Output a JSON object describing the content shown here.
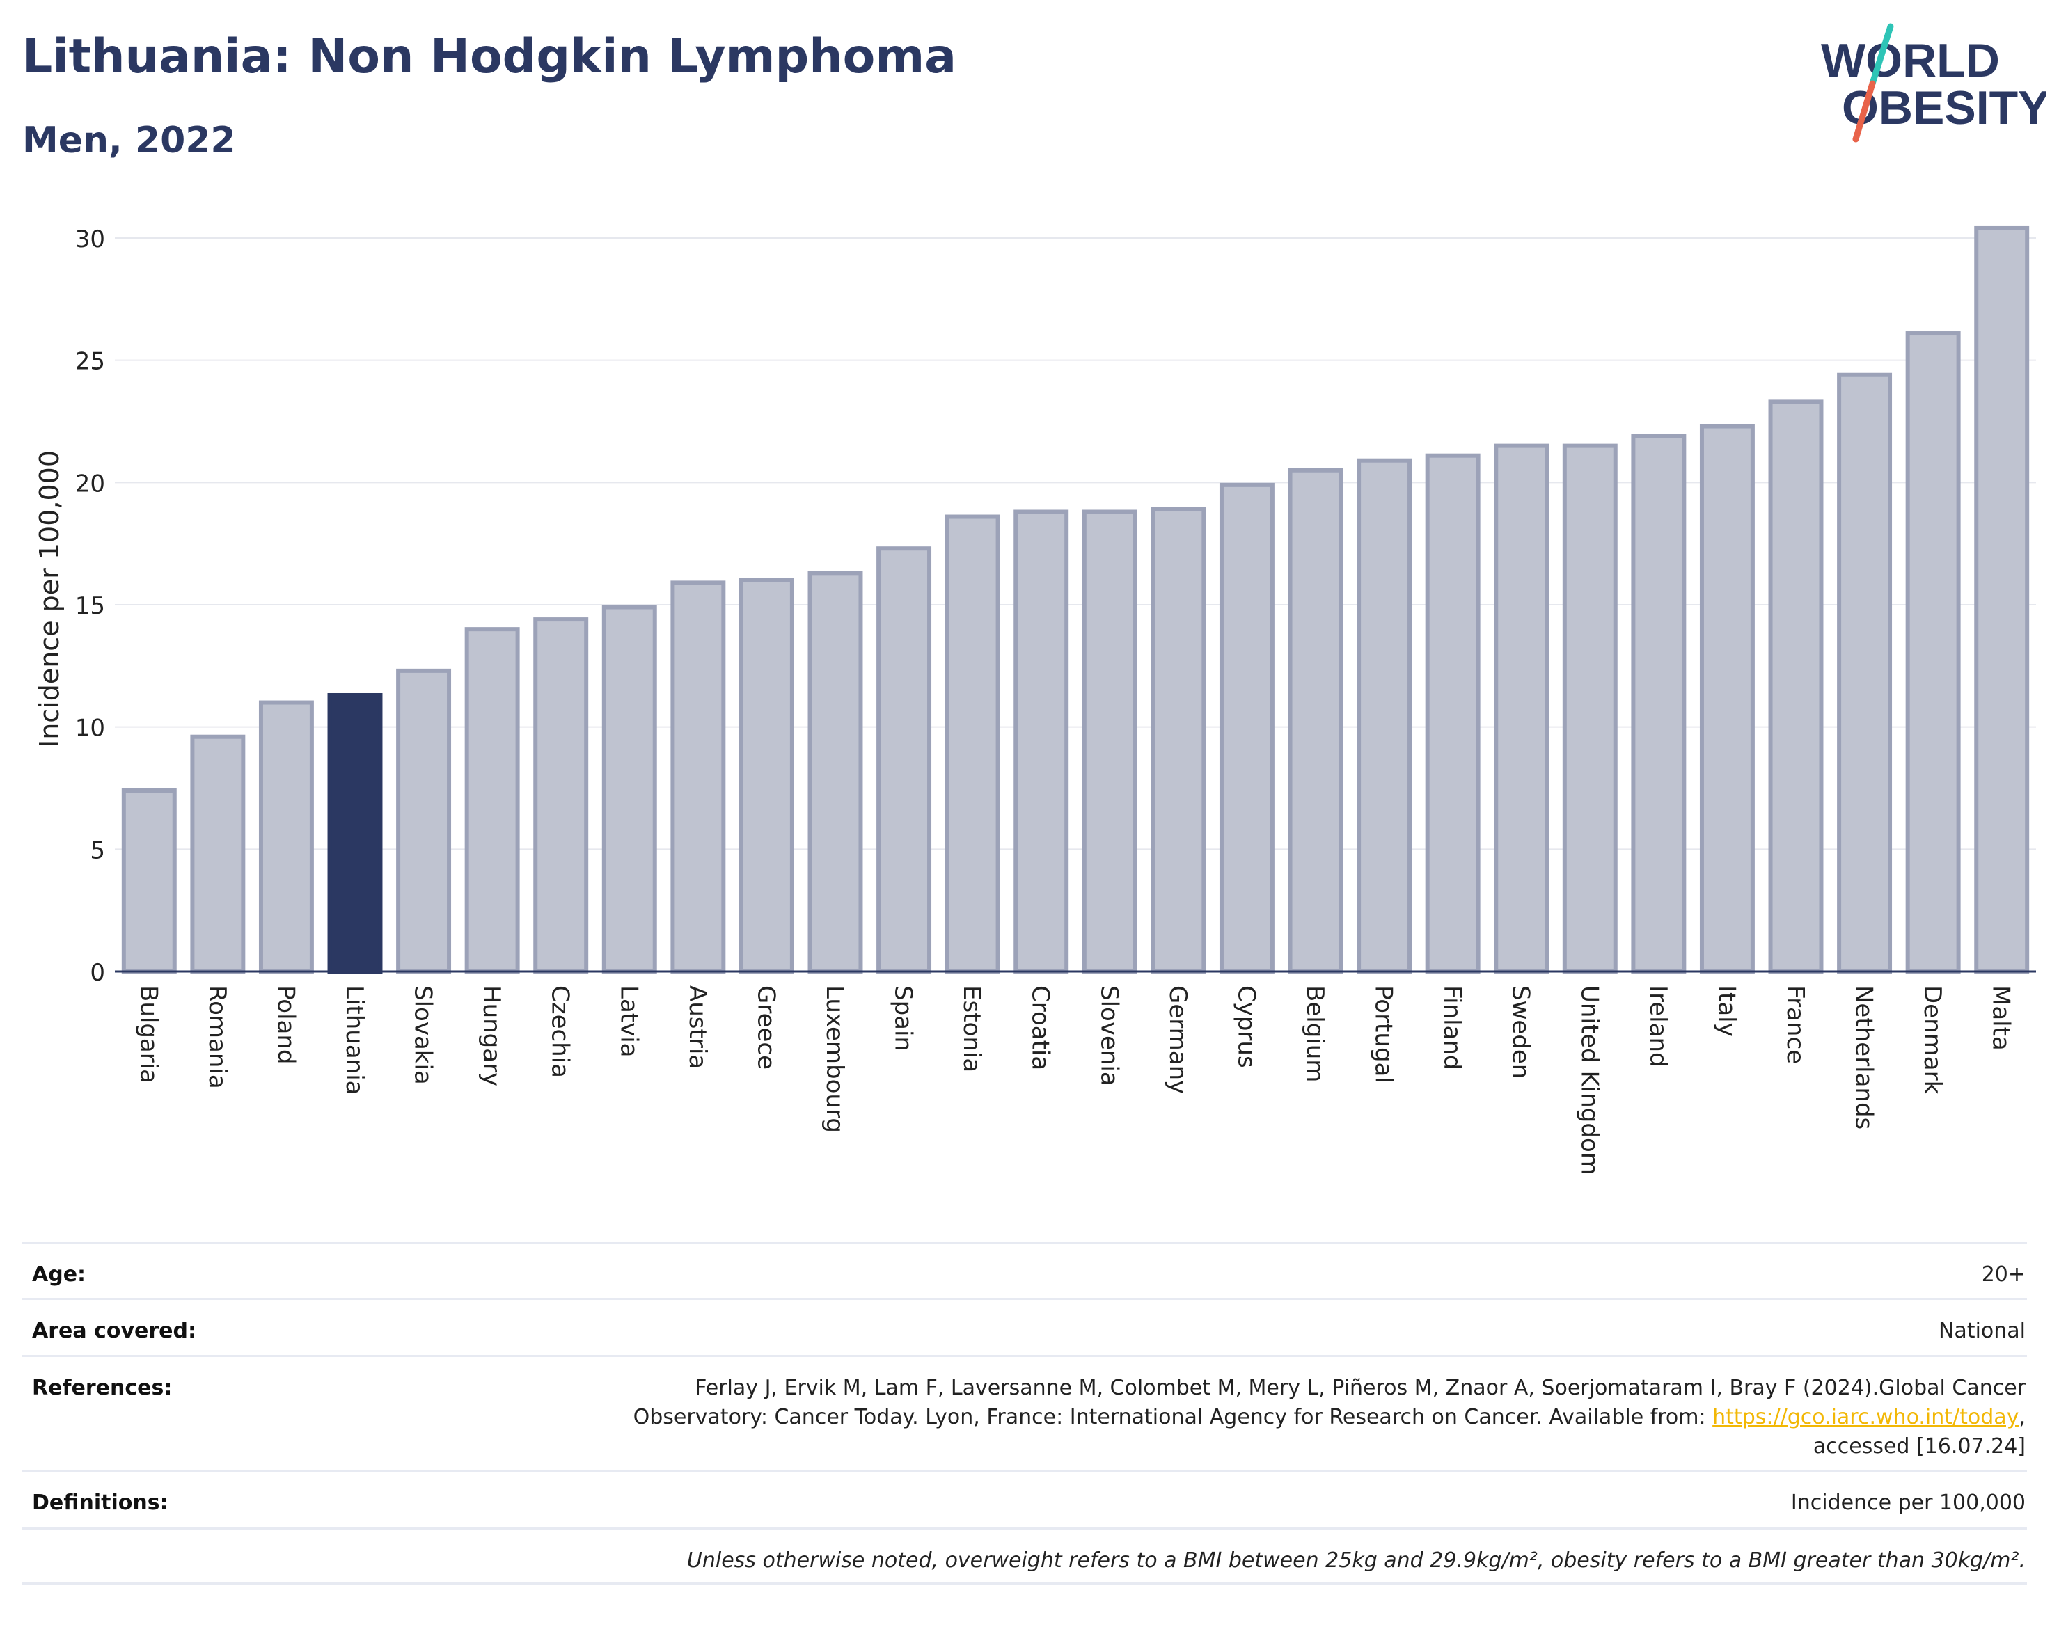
{
  "title": "Lithuania: Non Hodgkin Lymphoma",
  "subtitle": "Men, 2022",
  "logo": {
    "line1": "WORLD",
    "line2": "OBESITY",
    "accent_teal": "#2ec4b6",
    "accent_red": "#e8634a"
  },
  "colors": {
    "bar": "#bfc3d0",
    "bar_border": "#9ca2b8",
    "highlight": "#2b3862",
    "grid": "#e6e8ee",
    "axis": "#2b3862"
  },
  "chart_data": {
    "type": "bar",
    "ylabel": "Incidence per 100,000",
    "xlabel": "",
    "ylim": [
      0,
      31
    ],
    "yticks": [
      0,
      5,
      10,
      15,
      20,
      25,
      30
    ],
    "grid": true,
    "highlight": "Lithuania",
    "categories": [
      "Bulgaria",
      "Romania",
      "Poland",
      "Lithuania",
      "Slovakia",
      "Hungary",
      "Czechia",
      "Latvia",
      "Austria",
      "Greece",
      "Luxembourg",
      "Spain",
      "Estonia",
      "Croatia",
      "Slovenia",
      "Germany",
      "Cyprus",
      "Belgium",
      "Portugal",
      "Finland",
      "Sweden",
      "United Kingdom",
      "Ireland",
      "Italy",
      "France",
      "Netherlands",
      "Denmark",
      "Malta"
    ],
    "values": [
      7.4,
      9.6,
      11.0,
      11.3,
      12.3,
      14.0,
      14.4,
      14.9,
      15.9,
      16.0,
      16.3,
      17.3,
      18.6,
      18.8,
      18.8,
      18.9,
      19.9,
      20.5,
      20.9,
      21.1,
      21.5,
      21.5,
      21.9,
      22.3,
      23.3,
      24.4,
      26.1,
      30.4
    ]
  },
  "meta": {
    "age_label": "Age:",
    "age_value": "20+",
    "area_label": "Area covered:",
    "area_value": "National",
    "refs_label": "References:",
    "refs_text": "Ferlay J, Ervik M, Lam F, Laversanne M, Colombet M, Mery L, Piñeros M, Znaor A, Soerjomataram I, Bray F (2024).Global Cancer Observatory: Cancer Today. Lyon, France: International Agency for Research on Cancer. Available from: ",
    "refs_link": "https://gco.iarc.who.int/today",
    "refs_tail": ", accessed [16.07.24]",
    "defs_label": "Definitions:",
    "defs_value": "Incidence per 100,000",
    "note": "Unless otherwise noted, overweight refers to a BMI between 25kg and 29.9kg/m², obesity refers to a BMI greater than 30kg/m²."
  }
}
